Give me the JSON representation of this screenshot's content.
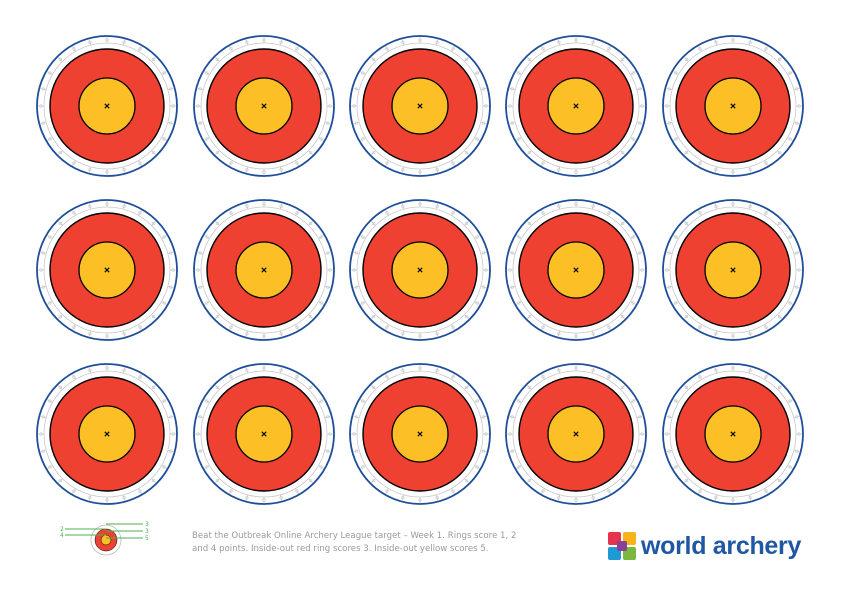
{
  "sheet": {
    "rows": 3,
    "columns": 5,
    "colors": {
      "outer_ring": "#1f4f9a",
      "spokes": "#c9c9c9",
      "red_zone": "#ee4132",
      "yellow_zone": "#fdbf26",
      "zone_outline": "#000000",
      "center_mark": "#000000"
    }
  },
  "legend": {
    "left_labels": [
      "2",
      "4"
    ],
    "right_labels": [
      "3",
      "3",
      "5"
    ],
    "line_color": "#4caf50"
  },
  "caption": {
    "line1": "Beat the Outbreak Online Archery League target – Week 1. Rings score 1, 2",
    "line2": "and 4 points. Inside-out red ring scores 3. Inside-out yellow scores 5."
  },
  "logo": {
    "text": "world archery",
    "colors": [
      "#e5344b",
      "#f6b41a",
      "#1e9ad6",
      "#7ab83f",
      "#8c3f96"
    ],
    "text_color": "#1f57a5"
  }
}
